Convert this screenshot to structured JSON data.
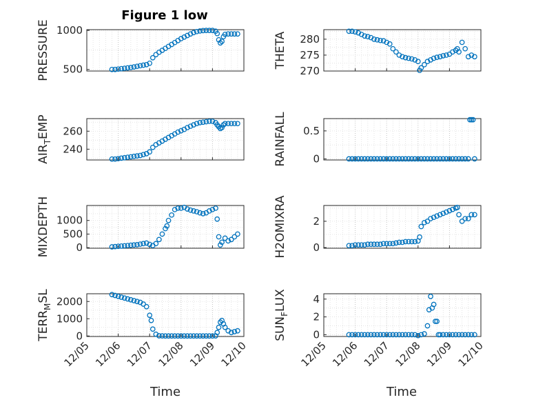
{
  "figure_title": "Figure 1 low",
  "marker_color": "#0072BD",
  "x_axis": {
    "label": "Time",
    "range": [
      "2008-12-05",
      "2008-12-10"
    ],
    "ticks": [
      "12/05",
      "12/06",
      "12/07",
      "12/08",
      "12/09",
      "12/10"
    ]
  },
  "chart_data": [
    {
      "type": "scatter",
      "ylabel": "PRESSURE",
      "ylim": [
        480,
        1010
      ],
      "yticks": [
        500,
        1000
      ],
      "grid": true,
      "x": [
        5.8,
        5.9,
        6.0,
        6.1,
        6.2,
        6.3,
        6.4,
        6.5,
        6.6,
        6.7,
        6.8,
        6.9,
        7.0,
        7.1,
        7.2,
        7.3,
        7.4,
        7.5,
        7.6,
        7.7,
        7.8,
        7.9,
        8.0,
        8.1,
        8.2,
        8.3,
        8.4,
        8.5,
        8.6,
        8.7,
        8.8,
        8.9,
        9.0,
        9.1,
        9.15,
        9.2,
        9.25,
        9.3,
        9.35,
        9.4,
        9.5,
        9.6,
        9.7,
        9.8
      ],
      "y": [
        500,
        500,
        505,
        510,
        515,
        520,
        525,
        532,
        540,
        548,
        555,
        562,
        580,
        650,
        690,
        720,
        745,
        770,
        795,
        820,
        845,
        870,
        895,
        915,
        935,
        955,
        972,
        985,
        993,
        998,
        1000,
        1000,
        1000,
        990,
        960,
        880,
        840,
        860,
        920,
        950,
        955,
        955,
        955,
        955
      ]
    },
    {
      "type": "scatter",
      "ylabel": "THETA",
      "ylim": [
        270,
        283
      ],
      "yticks": [
        270,
        275,
        280
      ],
      "grid": true,
      "x": [
        5.8,
        5.9,
        6.0,
        6.1,
        6.2,
        6.3,
        6.4,
        6.5,
        6.6,
        6.7,
        6.8,
        6.9,
        7.0,
        7.1,
        7.2,
        7.3,
        7.4,
        7.5,
        7.6,
        7.7,
        7.8,
        7.9,
        8.0,
        8.05,
        8.1,
        8.2,
        8.3,
        8.4,
        8.5,
        8.6,
        8.7,
        8.8,
        8.9,
        9.0,
        9.1,
        9.2,
        9.25,
        9.3,
        9.4,
        9.5,
        9.6,
        9.7,
        9.8
      ],
      "y": [
        282.5,
        282.5,
        282.3,
        282.0,
        281.5,
        281.0,
        280.8,
        280.5,
        280.0,
        279.8,
        279.6,
        279.5,
        279.0,
        278.5,
        277.0,
        276.0,
        275.0,
        274.5,
        274.2,
        274.0,
        273.8,
        273.5,
        273.0,
        270.2,
        271.0,
        272.0,
        273.0,
        273.5,
        274.0,
        274.3,
        274.5,
        274.8,
        275.0,
        275.3,
        276.0,
        276.5,
        277.0,
        276.0,
        279.0,
        277.0,
        274.5,
        275.0,
        274.5
      ]
    },
    {
      "type": "scatter",
      "ylabel": "AIR_TEMP",
      "ylim": [
        228,
        274
      ],
      "yticks": [
        240,
        260
      ],
      "grid": true,
      "x": [
        5.8,
        5.9,
        6.0,
        6.1,
        6.2,
        6.3,
        6.4,
        6.5,
        6.6,
        6.7,
        6.8,
        6.9,
        7.0,
        7.1,
        7.2,
        7.3,
        7.4,
        7.5,
        7.6,
        7.7,
        7.8,
        7.9,
        8.0,
        8.1,
        8.2,
        8.3,
        8.4,
        8.5,
        8.6,
        8.7,
        8.8,
        8.9,
        9.0,
        9.1,
        9.15,
        9.2,
        9.25,
        9.3,
        9.35,
        9.4,
        9.5,
        9.6,
        9.7,
        9.8
      ],
      "y": [
        229,
        229,
        229.5,
        230,
        230.5,
        231,
        231.5,
        232,
        232.5,
        233,
        234,
        235,
        237,
        242,
        245,
        247,
        249,
        251,
        253,
        255,
        257,
        259,
        260.5,
        262,
        264,
        265.5,
        267,
        268.5,
        269.5,
        270,
        270.5,
        271,
        271,
        269.5,
        267,
        265,
        263,
        264,
        267,
        268.5,
        268.5,
        268.5,
        268.5,
        268.5
      ]
    },
    {
      "type": "scatter",
      "ylabel": "RAINFALL",
      "ylim": [
        -0.02,
        0.72
      ],
      "yticks": [
        0,
        0.5
      ],
      "grid": true,
      "x": [
        5.8,
        5.9,
        6.0,
        6.1,
        6.2,
        6.3,
        6.4,
        6.5,
        6.6,
        6.7,
        6.8,
        6.9,
        7.0,
        7.1,
        7.2,
        7.3,
        7.4,
        7.5,
        7.6,
        7.7,
        7.8,
        7.9,
        8.0,
        8.1,
        8.2,
        8.3,
        8.4,
        8.5,
        8.6,
        8.7,
        8.8,
        8.9,
        9.0,
        9.1,
        9.2,
        9.3,
        9.4,
        9.5,
        9.6,
        9.65,
        9.7,
        9.75,
        9.8
      ],
      "y": [
        0,
        0,
        0,
        0,
        0,
        0,
        0,
        0,
        0,
        0,
        0,
        0,
        0,
        0,
        0,
        0,
        0,
        0,
        0,
        0,
        0,
        0,
        0,
        0,
        0,
        0,
        0,
        0,
        0,
        0,
        0,
        0,
        0,
        0,
        0,
        0,
        0,
        0,
        0,
        0.7,
        0.7,
        0.7,
        0
      ]
    },
    {
      "type": "scatter",
      "ylabel": "MIXDEPTH",
      "ylim": [
        -20,
        1550
      ],
      "yticks": [
        0,
        500,
        1000
      ],
      "grid": true,
      "x": [
        5.8,
        5.9,
        6.0,
        6.1,
        6.2,
        6.3,
        6.4,
        6.5,
        6.6,
        6.7,
        6.8,
        6.9,
        7.0,
        7.1,
        7.2,
        7.3,
        7.4,
        7.5,
        7.55,
        7.6,
        7.7,
        7.8,
        7.9,
        8.0,
        8.1,
        8.2,
        8.3,
        8.4,
        8.5,
        8.6,
        8.7,
        8.8,
        8.9,
        9.0,
        9.1,
        9.15,
        9.2,
        9.25,
        9.3,
        9.4,
        9.5,
        9.6,
        9.7,
        9.8
      ],
      "y": [
        30,
        40,
        50,
        60,
        70,
        80,
        90,
        100,
        110,
        130,
        150,
        170,
        120,
        80,
        150,
        300,
        500,
        700,
        800,
        1000,
        1200,
        1400,
        1450,
        1450,
        1480,
        1420,
        1380,
        1350,
        1320,
        1280,
        1250,
        1280,
        1350,
        1400,
        1450,
        1050,
        400,
        100,
        200,
        350,
        250,
        300,
        400,
        500
      ]
    },
    {
      "type": "scatter",
      "ylabel": "H2OMIXRA",
      "ylim": [
        -0.05,
        3.2
      ],
      "yticks": [
        0,
        2
      ],
      "grid": true,
      "x": [
        5.8,
        5.9,
        6.0,
        6.1,
        6.2,
        6.3,
        6.4,
        6.5,
        6.6,
        6.7,
        6.8,
        6.9,
        7.0,
        7.1,
        7.2,
        7.3,
        7.4,
        7.5,
        7.6,
        7.7,
        7.8,
        7.9,
        8.0,
        8.05,
        8.1,
        8.2,
        8.3,
        8.4,
        8.5,
        8.6,
        8.7,
        8.8,
        8.9,
        9.0,
        9.1,
        9.2,
        9.25,
        9.3,
        9.4,
        9.5,
        9.6,
        9.7,
        9.8
      ],
      "y": [
        0.15,
        0.15,
        0.2,
        0.2,
        0.2,
        0.2,
        0.25,
        0.25,
        0.25,
        0.25,
        0.25,
        0.3,
        0.3,
        0.3,
        0.3,
        0.35,
        0.4,
        0.4,
        0.45,
        0.45,
        0.45,
        0.45,
        0.5,
        0.8,
        1.6,
        1.9,
        2.0,
        2.2,
        2.3,
        2.4,
        2.5,
        2.6,
        2.7,
        2.8,
        2.9,
        3.0,
        3.05,
        2.5,
        2.0,
        2.2,
        2.2,
        2.5,
        2.5
      ]
    },
    {
      "type": "scatter",
      "ylabel": "TERR_MSL",
      "ylim": [
        -30,
        2450
      ],
      "yticks": [
        0,
        1000,
        2000
      ],
      "grid": true,
      "x": [
        5.8,
        5.9,
        6.0,
        6.1,
        6.2,
        6.3,
        6.4,
        6.5,
        6.6,
        6.7,
        6.8,
        6.9,
        7.0,
        7.05,
        7.1,
        7.2,
        7.3,
        7.4,
        7.5,
        7.6,
        7.7,
        7.8,
        7.9,
        8.0,
        8.1,
        8.2,
        8.3,
        8.4,
        8.5,
        8.6,
        8.7,
        8.8,
        8.9,
        9.0,
        9.1,
        9.15,
        9.2,
        9.25,
        9.3,
        9.35,
        9.4,
        9.5,
        9.6,
        9.7,
        9.8
      ],
      "y": [
        2400,
        2350,
        2300,
        2250,
        2200,
        2150,
        2100,
        2050,
        2000,
        1950,
        1850,
        1700,
        1200,
        900,
        400,
        100,
        10,
        5,
        0,
        0,
        0,
        0,
        0,
        0,
        0,
        0,
        0,
        0,
        0,
        0,
        0,
        0,
        0,
        0,
        5,
        200,
        500,
        800,
        900,
        700,
        500,
        300,
        200,
        250,
        300
      ]
    },
    {
      "type": "scatter",
      "ylabel": "SUN_FLUX",
      "ylim": [
        -0.2,
        4.6
      ],
      "yticks": [
        0,
        2,
        4
      ],
      "grid": true,
      "x": [
        5.8,
        5.9,
        6.0,
        6.1,
        6.2,
        6.3,
        6.4,
        6.5,
        6.6,
        6.7,
        6.8,
        6.9,
        7.0,
        7.1,
        7.2,
        7.3,
        7.4,
        7.5,
        7.6,
        7.7,
        7.8,
        7.9,
        8.0,
        8.1,
        8.2,
        8.3,
        8.35,
        8.4,
        8.45,
        8.5,
        8.55,
        8.6,
        8.65,
        8.7,
        8.8,
        8.9,
        9.0,
        9.1,
        9.2,
        9.3,
        9.4,
        9.5,
        9.6,
        9.7,
        9.8
      ],
      "y": [
        0,
        0,
        0,
        0,
        0,
        0,
        0,
        0,
        0,
        0,
        0,
        0,
        0,
        0,
        0,
        0,
        0,
        0,
        0,
        0,
        0,
        0,
        -0.1,
        0,
        0.1,
        1.0,
        2.8,
        4.3,
        3.0,
        3.4,
        1.5,
        1.5,
        0,
        0,
        0,
        0,
        0,
        0,
        0,
        0,
        0,
        0,
        0,
        0,
        0
      ]
    }
  ]
}
